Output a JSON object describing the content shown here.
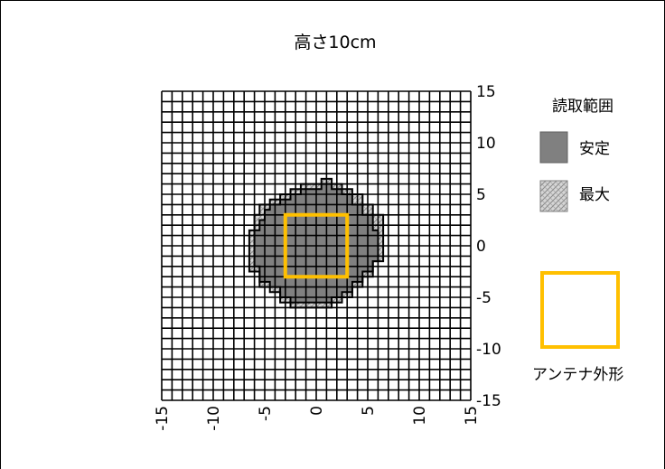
{
  "chart_data": {
    "type": "heatmap",
    "title": "高さ10cm",
    "xlim": [
      -15,
      15
    ],
    "ylim": [
      -15,
      15
    ],
    "grid": true,
    "grid_step": 1,
    "x_ticks": [
      "-15",
      "-10",
      "-5",
      "0",
      "5",
      "10",
      "15"
    ],
    "x_tick_values": [
      -15,
      -10,
      -5,
      0,
      5,
      10,
      15
    ],
    "y_ticks": [
      "15",
      "10",
      "5",
      "0",
      "-5",
      "-10",
      "-15"
    ],
    "y_tick_values": [
      15,
      10,
      5,
      0,
      -5,
      -10,
      -15
    ],
    "legend": {
      "title": "読取範囲",
      "stable_label": "安定",
      "max_label": "最大",
      "antenna_label": "アンテナ外形",
      "placement": "right"
    },
    "regions": {
      "max_range": [
        [
          -0.5,
          6
        ],
        [
          0.5,
          6
        ],
        [
          0.5,
          6.5
        ],
        [
          1.5,
          6.5
        ],
        [
          1.5,
          6
        ],
        [
          2.5,
          6
        ],
        [
          2.5,
          5.5
        ],
        [
          3.5,
          5.5
        ],
        [
          3.5,
          5
        ],
        [
          4.5,
          5
        ],
        [
          4.5,
          4
        ],
        [
          5.5,
          4
        ],
        [
          5.5,
          3
        ],
        [
          6.5,
          3
        ],
        [
          6.5,
          -1.5
        ],
        [
          5.5,
          -1.5
        ],
        [
          5.5,
          -3
        ],
        [
          4.5,
          -3
        ],
        [
          4.5,
          -4
        ],
        [
          3.5,
          -4
        ],
        [
          3.5,
          -5
        ],
        [
          2.5,
          -5
        ],
        [
          2.5,
          -5.5
        ],
        [
          1.5,
          -5.5
        ],
        [
          1.5,
          -6
        ],
        [
          -2.5,
          -6
        ],
        [
          -2.5,
          -5.5
        ],
        [
          -3.5,
          -5.5
        ],
        [
          -3.5,
          -4.5
        ],
        [
          -4.5,
          -4.5
        ],
        [
          -4.5,
          -4
        ],
        [
          -5.5,
          -4
        ],
        [
          -5.5,
          -2.5
        ],
        [
          -6.5,
          -2.5
        ],
        [
          -6.5,
          1.5
        ],
        [
          -6,
          1.5
        ],
        [
          -6,
          3
        ],
        [
          -5.5,
          3
        ],
        [
          -5.5,
          4
        ],
        [
          -4.5,
          4
        ],
        [
          -4.5,
          4.5
        ],
        [
          -3.5,
          4.5
        ],
        [
          -3.5,
          5
        ],
        [
          -2.5,
          5
        ],
        [
          -2.5,
          5.5
        ],
        [
          -1.5,
          5.5
        ],
        [
          -1.5,
          6
        ]
      ],
      "stable_range": [
        [
          -0.5,
          5.5
        ],
        [
          0.5,
          5.5
        ],
        [
          0.5,
          6
        ],
        [
          1.5,
          6
        ],
        [
          1.5,
          5.5
        ],
        [
          2.5,
          5.5
        ],
        [
          2.5,
          5
        ],
        [
          3.5,
          5
        ],
        [
          3.5,
          4
        ],
        [
          4.5,
          4
        ],
        [
          4.5,
          3
        ],
        [
          5.5,
          3
        ],
        [
          5.5,
          1.5
        ],
        [
          6,
          1.5
        ],
        [
          6,
          -1.5
        ],
        [
          5.5,
          -1.5
        ],
        [
          5.5,
          -2.5
        ],
        [
          4.5,
          -2.5
        ],
        [
          4.5,
          -3.5
        ],
        [
          3.5,
          -3.5
        ],
        [
          3.5,
          -4.5
        ],
        [
          2.5,
          -4.5
        ],
        [
          2.5,
          -5
        ],
        [
          1.5,
          -5
        ],
        [
          1.5,
          -5.5
        ],
        [
          -2.5,
          -5.5
        ],
        [
          -2.5,
          -5
        ],
        [
          -3.5,
          -5
        ],
        [
          -3.5,
          -4
        ],
        [
          -4.5,
          -4
        ],
        [
          -4.5,
          -3.5
        ],
        [
          -5.5,
          -3.5
        ],
        [
          -5.5,
          -2
        ],
        [
          -6,
          -2
        ],
        [
          -6,
          1.5
        ],
        [
          -5.5,
          1.5
        ],
        [
          -5.5,
          2.5
        ],
        [
          -5,
          2.5
        ],
        [
          -5,
          3.5
        ],
        [
          -4.5,
          3.5
        ],
        [
          -4.5,
          4
        ],
        [
          -3.5,
          4
        ],
        [
          -3.5,
          4.5
        ],
        [
          -2.5,
          4.5
        ],
        [
          -2.5,
          5
        ],
        [
          -1.5,
          5
        ],
        [
          -1.5,
          5.5
        ]
      ],
      "antenna": [
        [
          -3,
          3
        ],
        [
          3,
          3
        ],
        [
          3,
          -3
        ],
        [
          -3,
          -3
        ]
      ]
    },
    "colors": {
      "stable": "#808080",
      "max": "#c8c8c8",
      "antenna": "#ffc000",
      "grid": "#000000"
    }
  }
}
